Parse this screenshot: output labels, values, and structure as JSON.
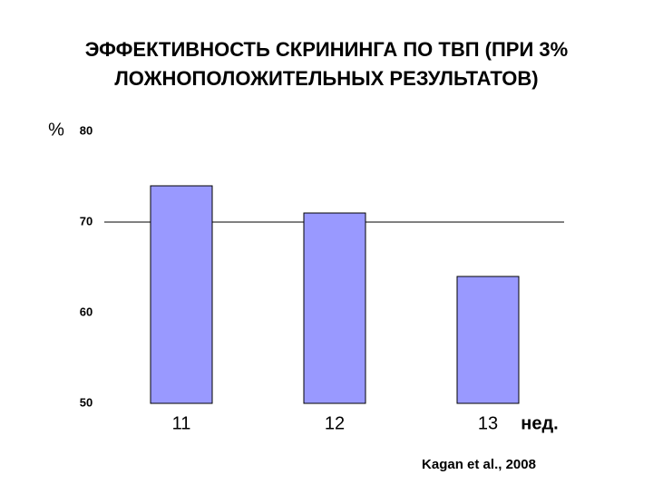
{
  "chart_data": {
    "type": "bar",
    "title": [
      "ЭФФЕКТИВНОСТЬ СКРИНИНГА ПО ТВП (ПРИ  3%",
      "ЛОЖНОПОЛОЖИТЕЛЬНЫХ РЕЗУЛЬТАТОВ)"
    ],
    "y_label": "%",
    "x_label": "нед.",
    "source": "Kagan et al., 2008",
    "categories": [
      "11",
      "12",
      "13"
    ],
    "values": [
      74,
      71,
      64
    ],
    "color": "#9999ff",
    "ylim": [
      50,
      80
    ],
    "yticks": [
      50,
      60,
      70,
      80
    ],
    "reference_line": 70
  }
}
